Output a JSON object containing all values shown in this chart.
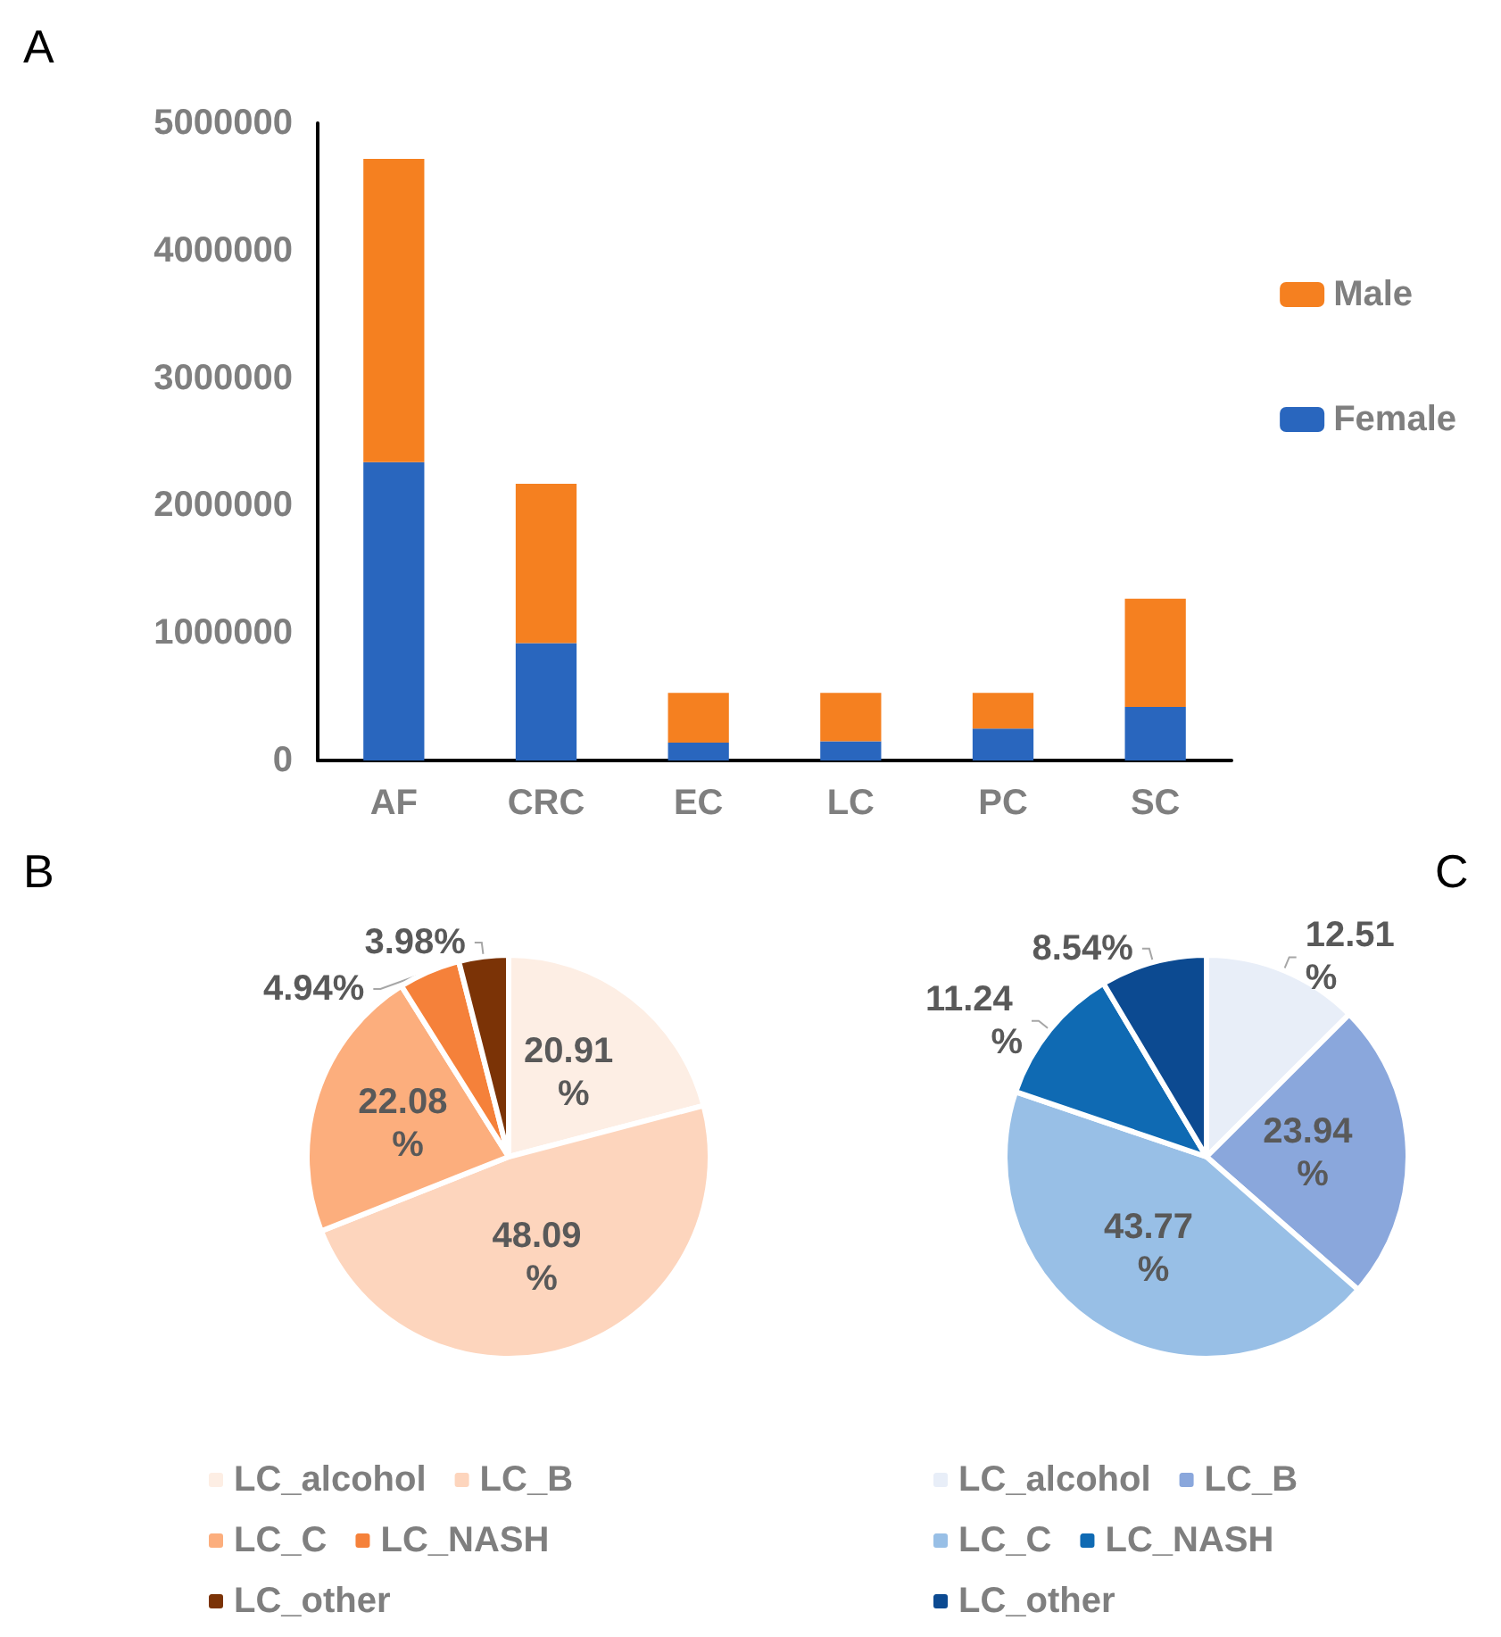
{
  "chart_data": [
    {
      "type": "bar",
      "title": "A",
      "categories": [
        "AF",
        "CRC",
        "EC",
        "LC",
        "PC",
        "SC"
      ],
      "stacked": true,
      "series": [
        {
          "name": "Female",
          "color": "#2966be",
          "values": [
            2340000,
            920000,
            140000,
            150000,
            250000,
            420000
          ]
        },
        {
          "name": "Male",
          "color": "#f58020",
          "values": [
            2380000,
            1250000,
            390000,
            380000,
            280000,
            850000
          ]
        }
      ],
      "ylim": [
        0,
        5000000
      ],
      "yticks": [
        0,
        1000000,
        2000000,
        3000000,
        4000000,
        5000000
      ],
      "grid": false,
      "legend": "right"
    },
    {
      "type": "pie",
      "title": "B",
      "categories": [
        "LC_alcohol",
        "LC_B",
        "LC_C",
        "LC_NASH",
        "LC_other"
      ],
      "values": [
        20.91,
        48.09,
        22.08,
        4.94,
        3.98
      ],
      "colors": [
        "#fdeee4",
        "#fdd5bd",
        "#fcae7d",
        "#f5813a",
        "#7b3306"
      ],
      "value_labels": [
        "20.91 %",
        "48.09 %",
        "22.08 %",
        "4.94%",
        "3.98%"
      ],
      "legend": "bottom"
    },
    {
      "type": "pie",
      "title": "C",
      "categories": [
        "LC_alcohol",
        "LC_B",
        "LC_C",
        "LC_NASH",
        "LC_other"
      ],
      "values": [
        12.51,
        23.94,
        43.77,
        11.24,
        8.54
      ],
      "colors": [
        "#e8eef8",
        "#8aa7dc",
        "#98bfe6",
        "#0f6ab3",
        "#0c4a91"
      ],
      "value_labels": [
        "12.51 %",
        "23.94 %",
        "43.77 %",
        "11.24 %",
        "8.54%"
      ],
      "legend": "bottom"
    }
  ]
}
